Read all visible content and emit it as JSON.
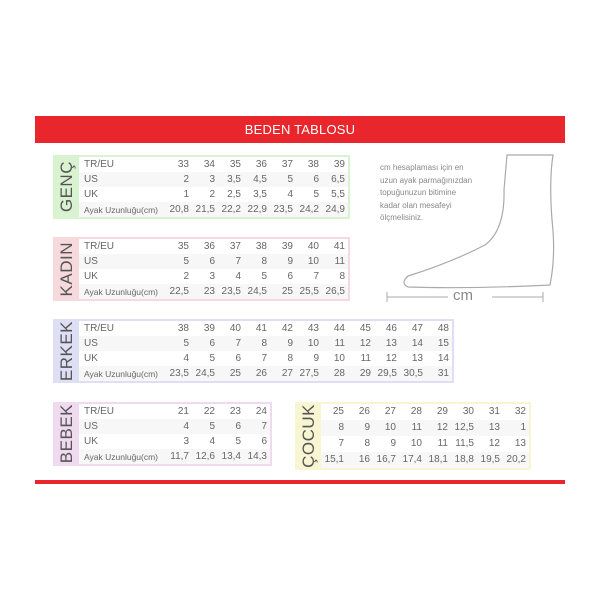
{
  "title": "BEDEN TABLOSU",
  "row_labels": [
    "TR/EU",
    "US",
    "UK",
    "Ayak Uzunluğu(cm)"
  ],
  "sections": {
    "genc": {
      "label": "GENÇ",
      "color": "#d9f2d0",
      "rows": [
        [
          "33",
          "34",
          "35",
          "36",
          "37",
          "38",
          "39"
        ],
        [
          "2",
          "3",
          "3,5",
          "4,5",
          "5",
          "6",
          "6,5"
        ],
        [
          "1",
          "2",
          "2,5",
          "3,5",
          "4",
          "5",
          "5,5"
        ],
        [
          "20,8",
          "21,5",
          "22,2",
          "22,9",
          "23,5",
          "24,2",
          "24,9"
        ]
      ]
    },
    "kadin": {
      "label": "KADIN",
      "color": "#f5d9dc",
      "rows": [
        [
          "35",
          "36",
          "37",
          "38",
          "39",
          "40",
          "41"
        ],
        [
          "5",
          "6",
          "7",
          "8",
          "9",
          "10",
          "11"
        ],
        [
          "2",
          "3",
          "4",
          "5",
          "6",
          "7",
          "8"
        ],
        [
          "22,5",
          "23",
          "23,5",
          "24,5",
          "25",
          "25,5",
          "26,5"
        ]
      ]
    },
    "erkek": {
      "label": "ERKEK",
      "color": "#dedef5",
      "rows": [
        [
          "38",
          "39",
          "40",
          "41",
          "42",
          "43",
          "44",
          "45",
          "46",
          "47",
          "48"
        ],
        [
          "5",
          "6",
          "7",
          "8",
          "9",
          "10",
          "11",
          "12",
          "13",
          "14",
          "15"
        ],
        [
          "4",
          "5",
          "6",
          "7",
          "8",
          "9",
          "10",
          "11",
          "12",
          "13",
          "14"
        ],
        [
          "23,5",
          "24,5",
          "25",
          "26",
          "27",
          "27,5",
          "28",
          "29",
          "29,5",
          "30,5",
          "31"
        ]
      ]
    },
    "bebek": {
      "label": "BEBEK",
      "color": "#f0daf0",
      "rows": [
        [
          "21",
          "22",
          "23",
          "24"
        ],
        [
          "4",
          "5",
          "6",
          "7"
        ],
        [
          "3",
          "4",
          "5",
          "6"
        ],
        [
          "11,7",
          "12,6",
          "13,4",
          "14,3"
        ]
      ]
    },
    "cocuk": {
      "label": "ÇOCUK",
      "color": "#f8f5d2",
      "rows": [
        [
          "25",
          "26",
          "27",
          "28",
          "29",
          "30",
          "31",
          "32"
        ],
        [
          "8",
          "9",
          "10",
          "11",
          "12",
          "12,5",
          "13",
          "1"
        ],
        [
          "7",
          "8",
          "9",
          "10",
          "11",
          "11,5",
          "12",
          "13"
        ],
        [
          "15,1",
          "16",
          "16,7",
          "17,4",
          "18,1",
          "18,8",
          "19,5",
          "20,2"
        ]
      ]
    }
  },
  "note": [
    "cm hesaplaması için en",
    "uzun ayak parmağınızdan",
    "topuğunuzun bitimine",
    "kadar olan mesafeyi",
    "ölçmelisiniz."
  ],
  "measure_label": "cm"
}
